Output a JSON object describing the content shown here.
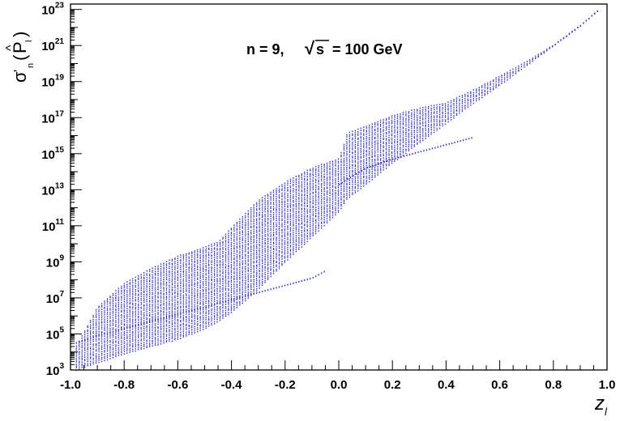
{
  "chart_data": {
    "type": "scatter",
    "title": "",
    "annotation": {
      "text_left": "n = 9,",
      "sqrt_symbol": "√",
      "sqrt_arg": "s",
      "text_right": "= 100 GeV"
    },
    "xlabel": {
      "base": "z",
      "sub": "l"
    },
    "ylabel": {
      "sigma": "σ",
      "prime": "'",
      "sub_n": "n",
      "paren_open": "(",
      "hat": "^",
      "p": "P",
      "sub_l": "l",
      "paren_close": ")"
    },
    "x_ticks": [
      "-1.0",
      "-0.8",
      "-0.6",
      "-0.4",
      "-0.2",
      "0.0",
      "0.2",
      "0.4",
      "0.6",
      "0.8",
      "1.0"
    ],
    "y_ticks": [
      {
        "base": "10",
        "exp": "3"
      },
      {
        "base": "10",
        "exp": "5"
      },
      {
        "base": "10",
        "exp": "7"
      },
      {
        "base": "10",
        "exp": "9"
      },
      {
        "base": "10",
        "exp": "11"
      },
      {
        "base": "10",
        "exp": "13"
      },
      {
        "base": "10",
        "exp": "15"
      },
      {
        "base": "10",
        "exp": "17"
      },
      {
        "base": "10",
        "exp": "19"
      },
      {
        "base": "10",
        "exp": "21"
      },
      {
        "base": "10",
        "exp": "23"
      }
    ],
    "xlim": [
      -1.0,
      1.0
    ],
    "ylim_log10": [
      3,
      23.3
    ],
    "y_scale": "log",
    "grid": false,
    "point_color": "#2b2bd8",
    "envelope": {
      "x": [
        -0.98,
        -0.9,
        -0.8,
        -0.7,
        -0.6,
        -0.5,
        -0.45,
        -0.4,
        -0.3,
        -0.2,
        -0.1,
        0.0,
        0.03,
        0.1,
        0.2,
        0.3,
        0.4,
        0.5,
        0.6,
        0.7,
        0.8,
        0.9,
        0.97
      ],
      "upper_log10": [
        4.3,
        6.5,
        7.8,
        8.6,
        9.3,
        9.8,
        10.1,
        10.9,
        12.4,
        13.4,
        14.2,
        14.7,
        16.1,
        16.5,
        17.1,
        17.5,
        17.8,
        18.5,
        19.3,
        20.1,
        21.0,
        22.1,
        23.0
      ],
      "lower_log10": [
        3.0,
        3.4,
        3.9,
        4.3,
        4.7,
        5.3,
        5.7,
        6.2,
        7.5,
        9.0,
        10.4,
        11.8,
        12.5,
        13.3,
        14.5,
        15.6,
        16.7,
        17.8,
        18.8,
        19.9,
        21.0,
        22.1,
        23.0
      ]
    },
    "secondary_band": {
      "x": [
        -0.98,
        -0.9,
        -0.8,
        -0.7,
        -0.6,
        -0.5,
        -0.4,
        -0.3,
        -0.2,
        -0.1,
        -0.05
      ],
      "log10": [
        4.5,
        4.9,
        5.3,
        5.7,
        6.1,
        6.5,
        6.9,
        7.3,
        7.7,
        8.1,
        8.5
      ]
    },
    "secondary_band_right": {
      "x": [
        0.0,
        0.1,
        0.2,
        0.3,
        0.4,
        0.5
      ],
      "log10": [
        13.3,
        14.2,
        14.7,
        15.1,
        15.5,
        15.9
      ]
    }
  }
}
